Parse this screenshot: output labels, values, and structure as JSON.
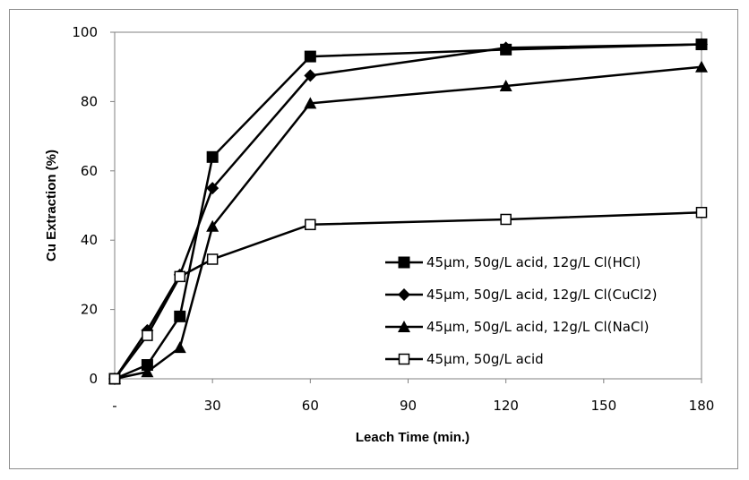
{
  "chart_data": {
    "type": "line",
    "xlabel": "Leach Time (min.)",
    "ylabel": "Cu Extraction  (%)",
    "xlim": [
      0,
      180
    ],
    "ylim": [
      0,
      100
    ],
    "x_ticks": [
      {
        "value": 0,
        "label": "-"
      },
      {
        "value": 30,
        "label": "30"
      },
      {
        "value": 60,
        "label": "60"
      },
      {
        "value": 90,
        "label": "90"
      },
      {
        "value": 120,
        "label": "120"
      },
      {
        "value": 150,
        "label": "150"
      },
      {
        "value": 180,
        "label": "180"
      }
    ],
    "y_ticks": [
      0,
      20,
      40,
      60,
      80,
      100
    ],
    "grid": false,
    "legend_position": "bottom-right",
    "series": [
      {
        "name": "45µm, 50g/L acid, 12g/L Cl(HCl)",
        "marker": "filled-square",
        "color": "#000000",
        "x": [
          0,
          10,
          20,
          30,
          60,
          120,
          180
        ],
        "y": [
          0,
          4,
          18,
          64,
          93,
          95,
          96.5
        ]
      },
      {
        "name": "45µm, 50g/L acid, 12g/L Cl(CuCl2)",
        "marker": "filled-diamond",
        "color": "#000000",
        "x": [
          0,
          10,
          20,
          30,
          60,
          120,
          180
        ],
        "y": [
          0,
          14,
          30,
          55,
          87.5,
          95.5,
          96.5
        ]
      },
      {
        "name": "45µm, 50g/L acid, 12g/L Cl(NaCl)",
        "marker": "filled-triangle",
        "color": "#000000",
        "x": [
          0,
          10,
          20,
          30,
          60,
          120,
          180
        ],
        "y": [
          0,
          2,
          9,
          44,
          79.5,
          84.5,
          90
        ]
      },
      {
        "name": "45µm, 50g/L acid",
        "marker": "open-square",
        "color": "#000000",
        "x": [
          0,
          10,
          20,
          30,
          60,
          120,
          180
        ],
        "y": [
          0,
          12.5,
          29.5,
          34.5,
          44.5,
          46,
          48
        ]
      }
    ]
  }
}
